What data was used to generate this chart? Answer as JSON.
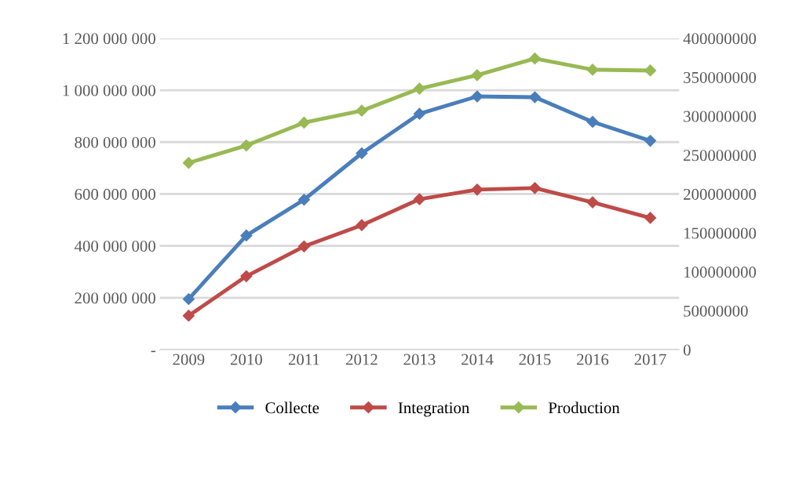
{
  "chart_data": {
    "type": "line",
    "categories": [
      "2009",
      "2010",
      "2011",
      "2012",
      "2013",
      "2014",
      "2015",
      "2016",
      "2017"
    ],
    "series": [
      {
        "name": "Collecte",
        "color": "#4a7ebb",
        "values": [
          195000000,
          440000000,
          578000000,
          757000000,
          909000000,
          976000000,
          973000000,
          878000000,
          805000000
        ]
      },
      {
        "name": "Integration",
        "color": "#be4b48",
        "values": [
          131000000,
          283000000,
          398000000,
          480000000,
          580000000,
          617000000,
          623000000,
          568000000,
          508000000
        ]
      },
      {
        "name": "Production",
        "color": "#98b954",
        "values": [
          720000000,
          787000000,
          875000000,
          921000000,
          1006000000,
          1058000000,
          1122000000,
          1079000000,
          1076000000
        ]
      }
    ],
    "ylim": [
      0,
      1200000000
    ],
    "yticks": [
      {
        "value": 0,
        "label": "-"
      },
      {
        "value": 200000000,
        "label": "200 000 000"
      },
      {
        "value": 400000000,
        "label": "400 000 000"
      },
      {
        "value": 600000000,
        "label": "600 000 000"
      },
      {
        "value": 800000000,
        "label": "800 000 000"
      },
      {
        "value": 1000000000,
        "label": "1 000 000 000"
      },
      {
        "value": 1200000000,
        "label": "1 200 000 000"
      }
    ],
    "y2lim": [
      0,
      400000000
    ],
    "y2ticks": [
      0,
      50000000,
      100000000,
      150000000,
      200000000,
      250000000,
      300000000,
      350000000,
      400000000
    ],
    "grid": "y",
    "legend": "bottom",
    "marker": "diamond",
    "line_style": "solid"
  }
}
